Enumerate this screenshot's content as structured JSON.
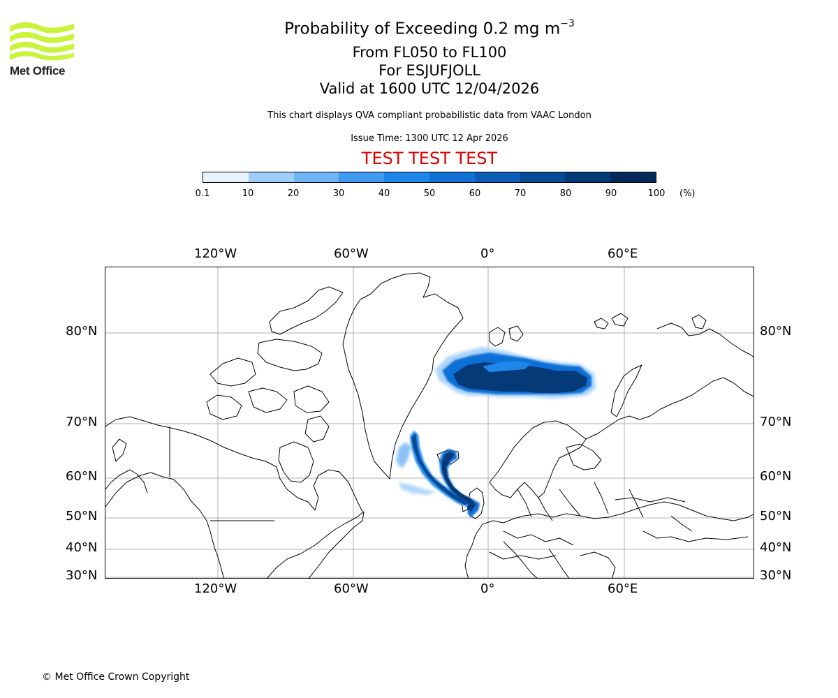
{
  "logo": {
    "name": "Met Office",
    "color": "#c8f53c"
  },
  "header": {
    "title_main": "Probability of Exceeding 0.2 mg m",
    "title_exponent": "−3",
    "level_range": "From FL050 to FL100",
    "volcano": "For ESJUFJOLL",
    "valid_time": "Valid at 1600 UTC 12/04/2026",
    "description": "This chart displays QVA compliant probabilistic data from VAAC London",
    "issue_time": "Issue Time: 1300 UTC 12 Apr 2026",
    "test_banner": "TEST TEST TEST"
  },
  "colorbar": {
    "ticks": [
      "0.1",
      "10",
      "20",
      "30",
      "40",
      "50",
      "60",
      "70",
      "80",
      "90",
      "100"
    ],
    "unit": "(%)",
    "colors": [
      "#e8f2fd",
      "#c6e1fb",
      "#9ecdf8",
      "#6fb4f4",
      "#3f9bef",
      "#1f87ea",
      "#1070d6",
      "#0a5cb5",
      "#064a96",
      "#043a78",
      "#032a5a"
    ]
  },
  "map": {
    "lon_labels": [
      "120°W",
      "60°W",
      "0°",
      "60°E"
    ],
    "lat_labels": [
      "80°N",
      "70°N",
      "60°N",
      "50°N",
      "40°N",
      "30°N"
    ],
    "grid_color": "#b0b0b0"
  },
  "footer": {
    "copyright": "© Met Office Crown Copyright"
  }
}
